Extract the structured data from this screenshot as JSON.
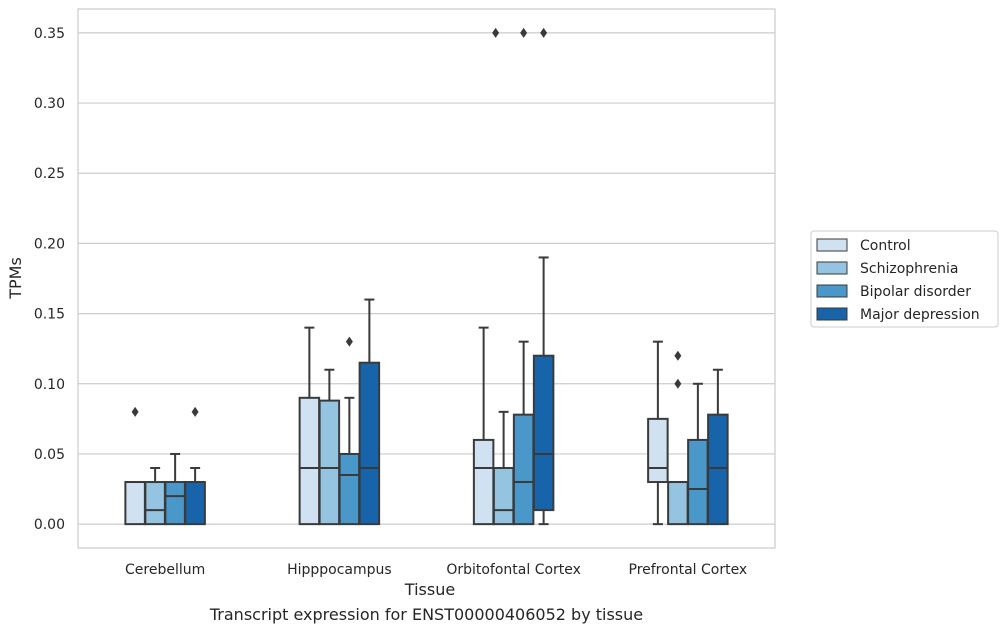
{
  "caption": "Transcript expression for ENST00000406052 by tissue",
  "chart_data": {
    "type": "boxplot",
    "xlabel": "Tissue",
    "ylabel": "TPMs",
    "ylim": [
      -0.017,
      0.367
    ],
    "yticks": [
      "0.00",
      "0.05",
      "0.10",
      "0.15",
      "0.20",
      "0.25",
      "0.30",
      "0.35"
    ],
    "grid": "horizontal",
    "legend_position": "outside-right",
    "categories": [
      "Cerebellum",
      "Hipppocampus",
      "Orbitofontal Cortex",
      "Prefrontal Cortex"
    ],
    "series": [
      {
        "name": "Control",
        "color": "#d0e1f2",
        "boxes": [
          {
            "whislo": 0.0,
            "q1": 0.0,
            "med": 0.03,
            "q3": 0.03,
            "whishi": 0.03,
            "fliers": [
              0.08
            ]
          },
          {
            "whislo": 0.0,
            "q1": 0.0,
            "med": 0.04,
            "q3": 0.09,
            "whishi": 0.14,
            "fliers": []
          },
          {
            "whislo": 0.0,
            "q1": 0.0,
            "med": 0.04,
            "q3": 0.06,
            "whishi": 0.14,
            "fliers": []
          },
          {
            "whislo": 0.0,
            "q1": 0.03,
            "med": 0.04,
            "q3": 0.075,
            "whishi": 0.13,
            "fliers": []
          }
        ]
      },
      {
        "name": "Schizophrenia",
        "color": "#94c4df",
        "boxes": [
          {
            "whislo": 0.0,
            "q1": 0.0,
            "med": 0.01,
            "q3": 0.03,
            "whishi": 0.04,
            "fliers": []
          },
          {
            "whislo": 0.0,
            "q1": 0.0,
            "med": 0.04,
            "q3": 0.088,
            "whishi": 0.11,
            "fliers": []
          },
          {
            "whislo": 0.0,
            "q1": 0.0,
            "med": 0.01,
            "q3": 0.04,
            "whishi": 0.08,
            "fliers": []
          },
          {
            "whislo": 0.0,
            "q1": 0.0,
            "med": 0.03,
            "q3": 0.03,
            "whishi": 0.03,
            "fliers": [
              0.1,
              0.12
            ]
          }
        ]
      },
      {
        "name": "Bipolar disorder",
        "color": "#4a98c9",
        "boxes": [
          {
            "whislo": 0.0,
            "q1": 0.0,
            "med": 0.02,
            "q3": 0.03,
            "whishi": 0.05,
            "fliers": []
          },
          {
            "whislo": 0.0,
            "q1": 0.0,
            "med": 0.035,
            "q3": 0.05,
            "whishi": 0.09,
            "fliers": [
              0.13
            ]
          },
          {
            "whislo": 0.0,
            "q1": 0.0,
            "med": 0.03,
            "q3": 0.078,
            "whishi": 0.13,
            "fliers": [
              0.35
            ]
          },
          {
            "whislo": 0.0,
            "q1": 0.0,
            "med": 0.025,
            "q3": 0.06,
            "whishi": 0.1,
            "fliers": []
          }
        ]
      },
      {
        "name": "Major depression",
        "color": "#1764ab",
        "boxes": [
          {
            "whislo": 0.0,
            "q1": 0.0,
            "med": 0.03,
            "q3": 0.03,
            "whishi": 0.04,
            "fliers": [
              0.08
            ]
          },
          {
            "whislo": 0.0,
            "q1": 0.0,
            "med": 0.04,
            "q3": 0.115,
            "whishi": 0.16,
            "fliers": []
          },
          {
            "whislo": 0.0,
            "q1": 0.01,
            "med": 0.05,
            "q3": 0.12,
            "whishi": 0.19,
            "fliers": [
              0.35
            ]
          },
          {
            "whislo": 0.0,
            "q1": 0.0,
            "med": 0.04,
            "q3": 0.078,
            "whishi": 0.11,
            "fliers": []
          }
        ]
      }
    ],
    "extra_fliers": [
      {
        "category": "Orbitofontal Cortex",
        "x_between": [
          "Control",
          "Schizophrenia"
        ],
        "value": 0.35
      }
    ]
  }
}
